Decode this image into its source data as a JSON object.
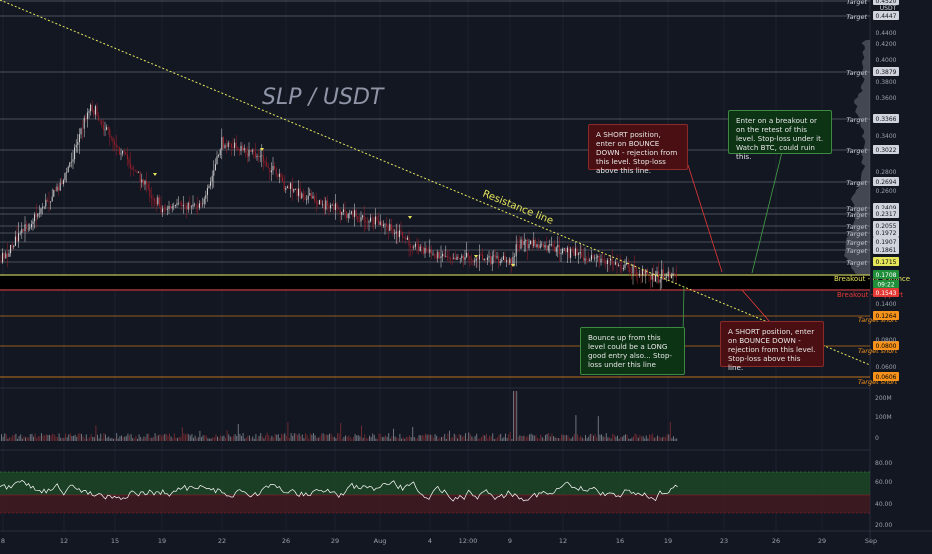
{
  "chart": {
    "title": "SLP / USDT",
    "trendline_label": "Resistance line",
    "currency": "USDT",
    "colors": {
      "background": "#131722",
      "candle_up": "#d9d9d9",
      "candle_down": "#9e1f2a",
      "resistance": "#e6e65c",
      "support": "#e53935",
      "target_short": "#f7931a",
      "rsi_line": "#ffffff",
      "rsi_upper_band": "#1f4d27",
      "rsi_lower_band": "#4a1b22",
      "callout_red_bg": "#4a0f12",
      "callout_green_bg": "#0d3315"
    }
  },
  "price_axis": {
    "ticks": [
      "0.4400",
      "0.4200",
      "0.4000",
      "0.3800",
      "0.3600",
      "0.3400",
      "0.2800",
      "0.2600",
      "0.1400",
      "0.0800",
      "0.0600"
    ],
    "badges": [
      "0.4520",
      "0.4447",
      "0.3879",
      "0.3366",
      "0.3022",
      "0.2694",
      "0.2409",
      "0.2317",
      "0.2055",
      "0.1972",
      "0.1907",
      "0.1861",
      "0.1715",
      "0.1708",
      "0.1543",
      "0.1264",
      "0.0800",
      "0.0606"
    ],
    "current_price": "0.1708",
    "countdown": "09:22"
  },
  "levels": {
    "target_label": "Target",
    "breakout_resistance_label": "Breakout - Resistance",
    "breakout_support_label": "Breakout - Support",
    "target_short_label": "Target short"
  },
  "volume_axis": [
    "200M",
    "100M",
    "0"
  ],
  "rsi_axis": [
    "80.00",
    "60.00",
    "40.00",
    "20.00"
  ],
  "time_axis": [
    "8",
    "12",
    "15",
    "19",
    "22",
    "26",
    "29",
    "Aug",
    "4",
    "12:00",
    "9",
    "12",
    "16",
    "19",
    "23",
    "26",
    "29",
    "Sep"
  ],
  "callouts": {
    "short_top": "A SHORT position, enter on BOUNCE DOWN - rejection from this level. Stop-loss above this line.",
    "breakout_entry": "Enter on a breakout or on the retest of this level. Stop-loss under it. Watch BTC, could ruin this.",
    "long_entry": "Bounce up from this level could be a LONG good entry also... Stop-loss under this line",
    "short_bottom": "A SHORT position, enter on BOUNCE DOWN - rejection from this level. Stop-loss above this line."
  },
  "chart_data": {
    "type": "line",
    "title": "SLP / USDT",
    "xlabel": "",
    "ylabel": "",
    "x": [
      "Jul 8",
      "Jul 12",
      "Jul 13",
      "Jul 15",
      "Jul 19",
      "Jul 22",
      "Jul 23",
      "Jul 26",
      "Jul 29",
      "Aug 1",
      "Aug 4",
      "Aug 9",
      "Aug 12",
      "Aug 16",
      "Aug 19",
      "Aug 20"
    ],
    "series": [
      {
        "name": "",
        "values": [
          0.19,
          0.3,
          0.4,
          0.35,
          0.26,
          0.27,
          0.35,
          0.29,
          0.26,
          0.24,
          0.2,
          0.19,
          0.205,
          0.185,
          0.17,
          0.171
        ]
      }
    ],
    "horizontal_levels": [
      0.452,
      0.4447,
      0.3879,
      0.3366,
      0.3022,
      0.2694,
      0.2409,
      0.2317,
      0.2055,
      0.1972,
      0.1907,
      0.1861,
      0.1715,
      0.1708,
      0.1543,
      0.1264,
      0.08,
      0.0606
    ],
    "resistance_line": {
      "from": [
        "Jul 8",
        0.46
      ],
      "to": [
        "Aug 20",
        0.17
      ]
    },
    "rsi_range": [
      20,
      80
    ],
    "volume_axis_max": "200M"
  }
}
